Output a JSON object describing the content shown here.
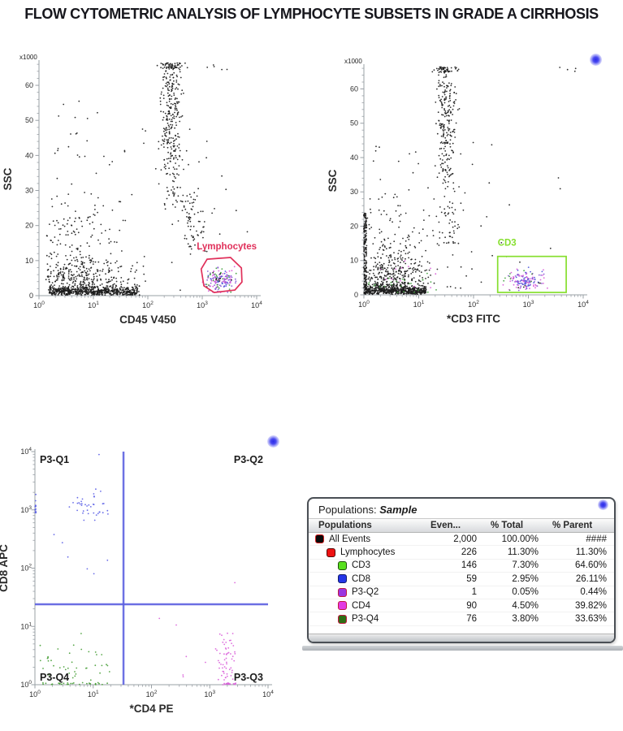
{
  "page": {
    "title": "FLOW CYTOMETRIC ANALYSIS OF LYMPHOCYTE SUBSETS IN GRADE A CIRRHOSIS",
    "background": "#ffffff",
    "title_color": "#17171d"
  },
  "decorations": {
    "glow_dot_color": "#4040f0",
    "glow_dot_count": 3
  },
  "chart_data": [
    {
      "type": "scatter",
      "name": "cd45-ssc-plot",
      "axes": {
        "x": {
          "scale": "log",
          "decades": [
            0,
            4
          ],
          "label": "CD45 V450",
          "tick_labels": [
            "10^0",
            "10^1",
            "10^2",
            "10^3",
            "10^4"
          ]
        },
        "y": {
          "scale": "linear",
          "range": [
            0,
            66.5
          ],
          "label": "SSC",
          "unit": "x1000",
          "ticks": [
            0,
            10,
            20,
            30,
            40,
            50,
            60
          ],
          "minor_step": 2
        }
      },
      "gates": [
        {
          "shape": "polygon",
          "label": "Lymphocytes",
          "color": "#e0305a",
          "label_pos": [
            2.9,
            13.2
          ],
          "points": [
            [
              3.09,
              10.4
            ],
            [
              3.52,
              10.9
            ],
            [
              3.72,
              7.9
            ],
            [
              3.73,
              3.9
            ],
            [
              3.6,
              1.6
            ],
            [
              3.22,
              0.9
            ],
            [
              3.03,
              2.8
            ],
            [
              2.98,
              7.6
            ]
          ]
        }
      ],
      "clusters": [
        {
          "n": 600,
          "color": "#1c1c1c",
          "x": [
            "u",
            0.18,
            1.85
          ],
          "y": [
            "n",
            1.1,
            0.8
          ],
          "yclamp": [
            0.15,
            3.6
          ]
        },
        {
          "n": 300,
          "color": "#1c1c1c",
          "x": [
            "n",
            0.75,
            0.42
          ],
          "xclamp": [
            0.12,
            1.95
          ],
          "y": [
            "n",
            4.5,
            3.2
          ],
          "yclamp": [
            0.8,
            14
          ]
        },
        {
          "n": 110,
          "color": "#1c1c1c",
          "x": [
            "n",
            0.62,
            0.38
          ],
          "xclamp": [
            0.1,
            1.7
          ],
          "y": [
            "n",
            15,
            7
          ],
          "yclamp": [
            4,
            38
          ]
        },
        {
          "n": 12,
          "color": "#1c1c1c",
          "x": [
            "u",
            0.2,
            1.2
          ],
          "y": [
            "u",
            35,
            56
          ]
        },
        {
          "n": 240,
          "color": "#1c1c1c",
          "x": [
            "n",
            2.42,
            0.1
          ],
          "xclamp": [
            2.15,
            2.72
          ],
          "y": [
            "n",
            53,
            10
          ],
          "yclamp": [
            30,
            66.4
          ]
        },
        {
          "n": 55,
          "color": "#1c1c1c",
          "x": [
            "n",
            2.44,
            0.13
          ],
          "xclamp": [
            2.1,
            2.8
          ],
          "y": [
            "u",
            64.8,
            66.4
          ]
        },
        {
          "n": 45,
          "color": "#1c1c1c",
          "x": [
            "n",
            2.5,
            0.12
          ],
          "xclamp": [
            2.2,
            2.85
          ],
          "y": [
            "u",
            25,
            40
          ]
        },
        {
          "n": 65,
          "color": "#1c1c1c",
          "x": [
            "n",
            2.85,
            0.11
          ],
          "xclamp": [
            2.55,
            3.15
          ],
          "y": [
            "n",
            21,
            5
          ],
          "yclamp": [
            13,
            33
          ]
        },
        {
          "n": 70,
          "color": "#1c1c1c",
          "x": [
            "u",
            0.15,
            3.2
          ],
          "y": [
            "u",
            1.5,
            48
          ]
        },
        {
          "n": 10,
          "color": "#1c1c1c",
          "x": [
            "u",
            3.0,
            3.85
          ],
          "y": [
            "u",
            12,
            35
          ]
        },
        {
          "n": 5,
          "color": "#1c1c1c",
          "x": [
            "u",
            2.75,
            3.55
          ],
          "y": [
            "u",
            64,
            66.3
          ]
        },
        {
          "n": 72,
          "color": "#8456d4",
          "x": [
            "n",
            3.33,
            0.14
          ],
          "xclamp": [
            2.95,
            3.7
          ],
          "y": [
            "n",
            4.3,
            1.7
          ],
          "yclamp": [
            0.8,
            9.5
          ]
        },
        {
          "n": 42,
          "color": "#d958d8",
          "x": [
            "n",
            3.33,
            0.16
          ],
          "xclamp": [
            2.95,
            3.7
          ],
          "y": [
            "n",
            4.0,
            1.8
          ],
          "yclamp": [
            0.8,
            9.5
          ]
        },
        {
          "n": 26,
          "color": "#3f9e3c",
          "x": [
            "n",
            3.28,
            0.17
          ],
          "xclamp": [
            2.95,
            3.7
          ],
          "y": [
            "n",
            4.5,
            1.9
          ],
          "yclamp": [
            0.8,
            9.5
          ]
        },
        {
          "n": 16,
          "color": "#4653dc",
          "x": [
            "n",
            3.38,
            0.13
          ],
          "xclamp": [
            3.0,
            3.7
          ],
          "y": [
            "n",
            4.6,
            1.5
          ],
          "yclamp": [
            1.0,
            9.0
          ]
        },
        {
          "n": 8,
          "color": "#1c1c1c",
          "x": [
            "n",
            3.33,
            0.15
          ],
          "y": [
            "n",
            4.3,
            1.8
          ],
          "yclamp": [
            0.8,
            9.5
          ]
        }
      ]
    },
    {
      "type": "scatter",
      "name": "cd3-ssc-plot",
      "axes": {
        "x": {
          "scale": "log",
          "decades": [
            0,
            4
          ],
          "label": "*CD3 FITC",
          "tick_labels": [
            "10^0",
            "10^1",
            "10^2",
            "10^3",
            "10^4"
          ]
        },
        "y": {
          "scale": "linear",
          "range": [
            0,
            66.5
          ],
          "label": "SSC",
          "unit": "x1000",
          "ticks": [
            0,
            10,
            20,
            30,
            40,
            50,
            60
          ],
          "minor_step": 2
        }
      },
      "gates": [
        {
          "shape": "rect",
          "label": "CD3",
          "color": "#86df2e",
          "label_pos": [
            2.44,
            14.3
          ],
          "x": [
            2.44,
            3.69
          ],
          "y": [
            0.7,
            11.2
          ]
        }
      ],
      "clusters": [
        {
          "n": 170,
          "color": "#1c1c1c",
          "x": [
            "u",
            0.0,
            0.05
          ],
          "y": [
            "u",
            0.3,
            24
          ]
        },
        {
          "n": 500,
          "color": "#1c1c1c",
          "x": [
            "u",
            0.02,
            1.15
          ],
          "y": [
            "n",
            1.1,
            0.8
          ],
          "yclamp": [
            0.15,
            3.6
          ]
        },
        {
          "n": 280,
          "color": "#1c1c1c",
          "x": [
            "n",
            0.5,
            0.34
          ],
          "xclamp": [
            0,
            1.4
          ],
          "y": [
            "n",
            4.5,
            3.2
          ],
          "yclamp": [
            0.8,
            14
          ]
        },
        {
          "n": 100,
          "color": "#1c1c1c",
          "x": [
            "n",
            0.52,
            0.36
          ],
          "xclamp": [
            0,
            1.5
          ],
          "y": [
            "n",
            14,
            6.5
          ],
          "yclamp": [
            4,
            32
          ]
        },
        {
          "n": 26,
          "color": "#3f9e3c",
          "x": [
            "n",
            0.6,
            0.38
          ],
          "xclamp": [
            0.05,
            1.5
          ],
          "y": [
            "n",
            3.5,
            2.5
          ],
          "yclamp": [
            0.5,
            12
          ]
        },
        {
          "n": 12,
          "color": "#d958d8",
          "x": [
            "n",
            0.8,
            0.45
          ],
          "xclamp": [
            0.1,
            1.7
          ],
          "y": [
            "n",
            6,
            3
          ],
          "yclamp": [
            1,
            11
          ]
        },
        {
          "n": 230,
          "color": "#1c1c1c",
          "x": [
            "n",
            1.5,
            0.09
          ],
          "xclamp": [
            1.25,
            1.78
          ],
          "y": [
            "n",
            49,
            12
          ],
          "yclamp": [
            22,
            66.4
          ]
        },
        {
          "n": 48,
          "color": "#1c1c1c",
          "x": [
            "n",
            1.5,
            0.13
          ],
          "xclamp": [
            1.2,
            1.85
          ],
          "y": [
            "u",
            64.8,
            66.4
          ]
        },
        {
          "n": 40,
          "color": "#1c1c1c",
          "x": [
            "n",
            1.55,
            0.12
          ],
          "xclamp": [
            1.25,
            1.9
          ],
          "y": [
            "u",
            14,
            26
          ]
        },
        {
          "n": 70,
          "color": "#1c1c1c",
          "x": [
            "u",
            0.05,
            2.4
          ],
          "y": [
            "u",
            1.5,
            45
          ]
        },
        {
          "n": 6,
          "color": "#1c1c1c",
          "x": [
            "u",
            2.5,
            3.8
          ],
          "y": [
            "u",
            10,
            35
          ]
        },
        {
          "n": 4,
          "color": "#1c1c1c",
          "x": [
            "u",
            3.4,
            3.95
          ],
          "y": [
            "u",
            64,
            66.3
          ]
        },
        {
          "n": 44,
          "color": "#8456d4",
          "x": [
            "n",
            2.95,
            0.16
          ],
          "xclamp": [
            2.5,
            3.5
          ],
          "y": [
            "n",
            4.2,
            1.5
          ],
          "yclamp": [
            1,
            10
          ]
        },
        {
          "n": 36,
          "color": "#4653dc",
          "x": [
            "n",
            2.95,
            0.13
          ],
          "xclamp": [
            2.55,
            3.4
          ],
          "y": [
            "n",
            4.4,
            1.3
          ],
          "yclamp": [
            1.2,
            9
          ]
        },
        {
          "n": 46,
          "color": "#d958d8",
          "x": [
            "n",
            2.95,
            0.19
          ],
          "xclamp": [
            2.45,
            3.55
          ],
          "y": [
            "n",
            3.8,
            1.6
          ],
          "yclamp": [
            0.9,
            10
          ]
        },
        {
          "n": 9,
          "color": "#3f9e3c",
          "x": [
            "n",
            2.9,
            0.2
          ],
          "y": [
            "n",
            4.5,
            2.0
          ],
          "yclamp": [
            1,
            10
          ]
        },
        {
          "n": 6,
          "color": "#1c1c1c",
          "x": [
            "n",
            2.95,
            0.2
          ],
          "y": [
            "n",
            4.2,
            2.0
          ],
          "yclamp": [
            1,
            10
          ]
        }
      ]
    },
    {
      "type": "scatter",
      "name": "cd4-cd8-quadrant-plot",
      "axes": {
        "x": {
          "scale": "log",
          "decades": [
            0,
            4
          ],
          "label": "*CD4 PE",
          "tick_labels": [
            "10^0",
            "10^1",
            "10^2",
            "10^3",
            "10^4"
          ]
        },
        "y": {
          "scale": "log",
          "decades": [
            0,
            4
          ],
          "label": "CD8 APC",
          "tick_labels": [
            "10^0",
            "10^1",
            "10^2",
            "10^3",
            "10^4"
          ]
        }
      },
      "quadrant": {
        "x_line_log10": 1.52,
        "y_line_log10": 1.38,
        "color": "#5b5fe0",
        "labels": [
          {
            "text": "P3-Q1",
            "corner": "tl"
          },
          {
            "text": "P3-Q2",
            "corner": "tr"
          },
          {
            "text": "P3-Q3",
            "corner": "br"
          },
          {
            "text": "P3-Q4",
            "corner": "bl"
          }
        ]
      },
      "clusters": [
        {
          "n": 38,
          "color": "#5b5fe6",
          "x": [
            "n",
            0.95,
            0.17
          ],
          "xclamp": [
            0.5,
            1.35
          ],
          "y": [
            "n",
            3.08,
            0.11
          ],
          "yclamp": [
            2.7,
            3.4
          ]
        },
        {
          "n": 13,
          "color": "#5b5fe6",
          "x": [
            "u",
            0.0,
            0.02
          ],
          "y": [
            "u",
            2.78,
            3.28
          ]
        },
        {
          "n": 6,
          "color": "#5b5fe6",
          "x": [
            "u",
            0.3,
            1.3
          ],
          "y": [
            "u",
            1.6,
            2.65
          ]
        },
        {
          "n": 1,
          "color": "#5b5fe6",
          "x": [
            "c",
            1.1,
            0
          ],
          "y": [
            "c",
            3.95,
            0
          ]
        },
        {
          "n": 40,
          "color": "#49a038",
          "x": [
            "u",
            0.05,
            1.28
          ],
          "y": [
            "n",
            0.35,
            0.26
          ],
          "yclamp": [
            0.03,
            0.88
          ]
        },
        {
          "n": 30,
          "color": "#49a038",
          "x": [
            "u",
            0.1,
            1.32
          ],
          "y": [
            "u",
            0.0,
            0.035
          ]
        },
        {
          "n": 55,
          "color": "#da62da",
          "x": [
            "n",
            3.3,
            0.09
          ],
          "xclamp": [
            2.95,
            3.5
          ],
          "y": [
            "n",
            0.42,
            0.3
          ],
          "yclamp": [
            0.03,
            0.95
          ]
        },
        {
          "n": 18,
          "color": "#da62da",
          "x": [
            "u",
            3.2,
            3.45
          ],
          "y": [
            "u",
            0.0,
            0.03
          ]
        },
        {
          "n": 6,
          "color": "#da62da",
          "x": [
            "u",
            2.5,
            3.15
          ],
          "y": [
            "u",
            0.1,
            0.8
          ]
        },
        {
          "n": 1,
          "color": "#da62da",
          "x": [
            "c",
            3.43,
            0
          ],
          "y": [
            "c",
            1.75,
            0
          ]
        },
        {
          "n": 2,
          "color": "#da62da",
          "x": [
            "u",
            2.1,
            2.45
          ],
          "y": [
            "u",
            0.7,
            1.3
          ]
        }
      ]
    },
    {
      "type": "table",
      "name": "populations-statistics",
      "title_label": "Populations:",
      "title_value": "Sample",
      "columns": [
        "Populations",
        "Even...",
        "% Total",
        "% Parent"
      ],
      "rows": [
        {
          "label": "All Events",
          "events": "2,000",
          "pct_total": "100.00%",
          "pct_parent": "####",
          "swatch": "#0a0a0a",
          "swatch_border": "#d81f1f",
          "indent": 0
        },
        {
          "label": "Lymphocytes",
          "events": "226",
          "pct_total": "11.30%",
          "pct_parent": "11.30%",
          "swatch": "#ee1111",
          "swatch_border": "#550808",
          "indent": 1
        },
        {
          "label": "CD3",
          "events": "146",
          "pct_total": "7.30%",
          "pct_parent": "64.60%",
          "swatch": "#58e01e",
          "swatch_border": "#1d4d09",
          "indent": 2
        },
        {
          "label": "CD8",
          "events": "59",
          "pct_total": "2.95%",
          "pct_parent": "26.11%",
          "swatch": "#2335e8",
          "swatch_border": "#101a6a",
          "indent": 2
        },
        {
          "label": "P3-Q2",
          "events": "1",
          "pct_total": "0.05%",
          "pct_parent": "0.44%",
          "swatch": "#9a35e0",
          "swatch_border": "#c01840",
          "indent": 2
        },
        {
          "label": "CD4",
          "events": "90",
          "pct_total": "4.50%",
          "pct_parent": "39.82%",
          "swatch": "#e23ae2",
          "swatch_border": "#c01840",
          "indent": 2
        },
        {
          "label": "P3-Q4",
          "events": "76",
          "pct_total": "3.80%",
          "pct_parent": "33.63%",
          "swatch": "#2e6e14",
          "swatch_border": "#c01840",
          "indent": 2
        }
      ]
    }
  ]
}
